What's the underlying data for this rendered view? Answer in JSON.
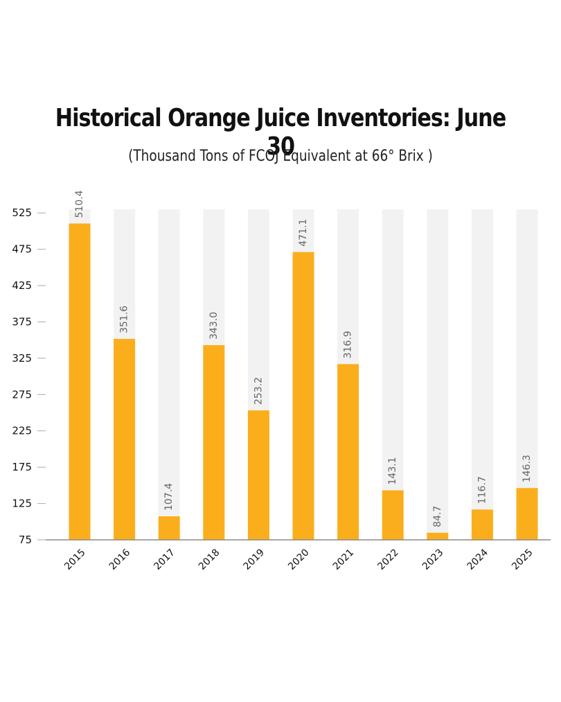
{
  "chart_data": {
    "type": "bar",
    "title": "Historical Orange Juice Inventories: June 30",
    "subtitle": "(Thousand Tons of FCOJ Equivalent at 66° Brix )",
    "categories": [
      "2015",
      "2016",
      "2017",
      "2018",
      "2019",
      "2020",
      "2021",
      "2022",
      "2023",
      "2024",
      "2025"
    ],
    "values": [
      510.4,
      351.6,
      107.4,
      343.0,
      253.2,
      471.1,
      316.9,
      143.1,
      84.7,
      116.7,
      146.3
    ],
    "data_labels": [
      "510.4",
      "351.6",
      "107.4",
      "343.0",
      "253.2",
      "471.1",
      "316.9",
      "143.1",
      "84.7",
      "116.7",
      "146.3"
    ],
    "ylim": [
      75,
      530
    ],
    "yticks": [
      75,
      125,
      175,
      225,
      275,
      325,
      375,
      425,
      475,
      525
    ],
    "grid": false,
    "colors": {
      "bar": "#FBAE1C",
      "track": "#F2F2F2",
      "axis": "#888888"
    }
  }
}
